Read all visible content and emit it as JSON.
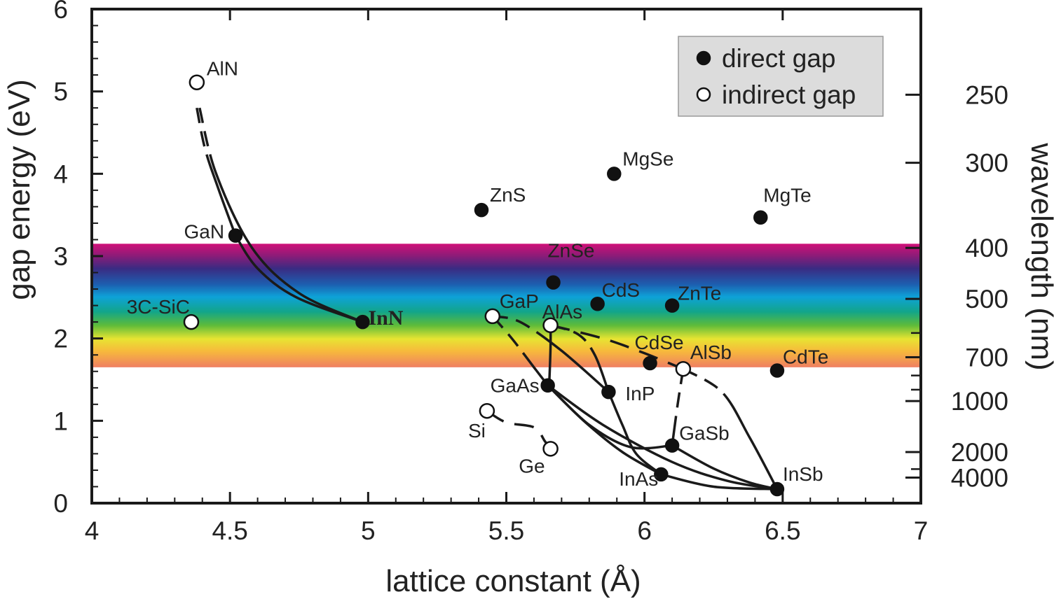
{
  "chart_data": {
    "type": "scatter",
    "xlabel": "lattice constant (Å)",
    "ylabel": "gap energy (eV)",
    "y2label": "wavelength (nm)",
    "xlim": [
      4,
      7
    ],
    "ylim": [
      0,
      6
    ],
    "x_ticks": [
      "4",
      "4.5",
      "5",
      "5.5",
      "6",
      "6.5",
      "7"
    ],
    "y_ticks": [
      "0",
      "1",
      "2",
      "3",
      "4",
      "5",
      "6"
    ],
    "wavelength_ticks": [
      {
        "label": "250",
        "nm": 250
      },
      {
        "label": "300",
        "nm": 300
      },
      {
        "label": "400",
        "nm": 400
      },
      {
        "label": "500",
        "nm": 500
      },
      {
        "label": "700",
        "nm": 700
      },
      {
        "label": "1000",
        "nm": 1000
      },
      {
        "label": "2000",
        "nm": 2000
      },
      {
        "label": "4000",
        "nm": 4000
      }
    ],
    "wavelength_extra_ticks_nm": [
      600,
      800,
      900,
      3000
    ],
    "visible_band_eV": [
      1.65,
      3.15
    ],
    "legend": {
      "position": "top-right",
      "entries": [
        {
          "label": "direct gap",
          "marker": "filled"
        },
        {
          "label": "indirect gap",
          "marker": "open"
        }
      ]
    },
    "materials": [
      {
        "name": "AlN",
        "a": 4.38,
        "eg": 5.11,
        "gap": "indirect"
      },
      {
        "name": "GaN",
        "a": 4.52,
        "eg": 3.25,
        "gap": "direct"
      },
      {
        "name": "InN",
        "a": 4.98,
        "eg": 2.2,
        "gap": "direct",
        "bold": true
      },
      {
        "name": "3C-SiC",
        "a": 4.36,
        "eg": 2.2,
        "gap": "indirect"
      },
      {
        "name": "ZnS",
        "a": 5.41,
        "eg": 3.56,
        "gap": "direct"
      },
      {
        "name": "MgSe",
        "a": 5.89,
        "eg": 4.0,
        "gap": "direct"
      },
      {
        "name": "MgTe",
        "a": 6.42,
        "eg": 3.47,
        "gap": "direct"
      },
      {
        "name": "ZnSe",
        "a": 5.67,
        "eg": 2.68,
        "gap": "direct"
      },
      {
        "name": "CdS",
        "a": 5.83,
        "eg": 2.42,
        "gap": "direct"
      },
      {
        "name": "ZnTe",
        "a": 6.1,
        "eg": 2.4,
        "gap": "direct"
      },
      {
        "name": "GaP",
        "a": 5.45,
        "eg": 2.27,
        "gap": "indirect"
      },
      {
        "name": "AlAs",
        "a": 5.66,
        "eg": 2.16,
        "gap": "indirect"
      },
      {
        "name": "CdSe",
        "a": 6.02,
        "eg": 1.7,
        "gap": "direct"
      },
      {
        "name": "AlSb",
        "a": 6.14,
        "eg": 1.63,
        "gap": "indirect"
      },
      {
        "name": "CdTe",
        "a": 6.48,
        "eg": 1.61,
        "gap": "direct"
      },
      {
        "name": "GaAs",
        "a": 5.65,
        "eg": 1.43,
        "gap": "direct"
      },
      {
        "name": "InP",
        "a": 5.87,
        "eg": 1.35,
        "gap": "direct"
      },
      {
        "name": "Si",
        "a": 5.43,
        "eg": 1.12,
        "gap": "indirect"
      },
      {
        "name": "Ge",
        "a": 5.66,
        "eg": 0.66,
        "gap": "indirect"
      },
      {
        "name": "GaSb",
        "a": 6.1,
        "eg": 0.7,
        "gap": "direct"
      },
      {
        "name": "InAs",
        "a": 6.06,
        "eg": 0.35,
        "gap": "direct"
      },
      {
        "name": "InSb",
        "a": 6.48,
        "eg": 0.17,
        "gap": "direct"
      }
    ],
    "alloy_curves": [
      {
        "name": "AlN-GaN",
        "points": [
          [
            4.38,
            4.8
          ],
          [
            4.41,
            4.3
          ],
          [
            4.46,
            3.8
          ],
          [
            4.52,
            3.25
          ]
        ],
        "dash": "top"
      },
      {
        "name": "GaN-InN",
        "points": [
          [
            4.52,
            3.25
          ],
          [
            4.6,
            2.85
          ],
          [
            4.74,
            2.5
          ],
          [
            4.98,
            2.2
          ]
        ]
      },
      {
        "name": "AlN-InN",
        "points": [
          [
            4.39,
            4.8
          ],
          [
            4.45,
            4.0
          ],
          [
            4.58,
            3.1
          ],
          [
            4.75,
            2.55
          ],
          [
            4.98,
            2.2
          ]
        ],
        "dash": "top"
      },
      {
        "name": "GaP-GaAs",
        "points": [
          [
            5.45,
            2.27
          ],
          [
            5.52,
            2.0
          ],
          [
            5.6,
            1.65
          ],
          [
            5.65,
            1.43
          ]
        ],
        "dash": "top"
      },
      {
        "name": "AlAs-GaAs",
        "points": [
          [
            5.66,
            2.16
          ],
          [
            5.66,
            1.9
          ],
          [
            5.655,
            1.43
          ]
        ]
      },
      {
        "name": "GaP-InP",
        "points": [
          [
            5.45,
            2.27
          ],
          [
            5.55,
            2.2
          ],
          [
            5.7,
            1.85
          ],
          [
            5.87,
            1.35
          ]
        ],
        "dash": "top"
      },
      {
        "name": "AlAs-InP",
        "points": [
          [
            5.66,
            2.16
          ],
          [
            5.76,
            2.05
          ],
          [
            5.82,
            1.8
          ],
          [
            5.87,
            1.35
          ]
        ],
        "dash": "top"
      },
      {
        "name": "GaAs-InAs",
        "points": [
          [
            5.65,
            1.43
          ],
          [
            5.78,
            1.0
          ],
          [
            5.92,
            0.62
          ],
          [
            6.06,
            0.35
          ]
        ]
      },
      {
        "name": "InP-InAs",
        "points": [
          [
            5.87,
            1.35
          ],
          [
            5.92,
            0.95
          ],
          [
            5.97,
            0.6
          ],
          [
            6.06,
            0.35
          ]
        ]
      },
      {
        "name": "AlAs-AlSb",
        "points": [
          [
            5.66,
            2.16
          ],
          [
            5.85,
            2.0
          ],
          [
            6.0,
            1.82
          ],
          [
            6.14,
            1.63
          ]
        ],
        "dash": "all"
      },
      {
        "name": "GaAs-GaSb-path",
        "points": [
          [
            5.65,
            1.43
          ],
          [
            5.8,
            0.95
          ],
          [
            5.95,
            0.68
          ],
          [
            6.1,
            0.7
          ]
        ]
      },
      {
        "name": "AlSb-GaSb",
        "points": [
          [
            6.14,
            1.63
          ],
          [
            6.12,
            1.2
          ],
          [
            6.1,
            0.7
          ]
        ],
        "dash": "top"
      },
      {
        "name": "GaAs-InSb",
        "points": [
          [
            5.65,
            1.43
          ],
          [
            5.85,
            0.95
          ],
          [
            6.1,
            0.5
          ],
          [
            6.3,
            0.27
          ],
          [
            6.48,
            0.17
          ]
        ]
      },
      {
        "name": "InAs-InSb",
        "points": [
          [
            6.06,
            0.35
          ],
          [
            6.25,
            0.2
          ],
          [
            6.48,
            0.17
          ]
        ]
      },
      {
        "name": "GaSb-InSb",
        "points": [
          [
            6.1,
            0.7
          ],
          [
            6.25,
            0.42
          ],
          [
            6.38,
            0.25
          ],
          [
            6.48,
            0.17
          ]
        ]
      },
      {
        "name": "AlSb-InSb",
        "points": [
          [
            6.14,
            1.63
          ],
          [
            6.28,
            1.35
          ],
          [
            6.38,
            0.8
          ],
          [
            6.48,
            0.17
          ]
        ],
        "dash": "top"
      },
      {
        "name": "Si-Ge",
        "points": [
          [
            5.43,
            1.12
          ],
          [
            5.5,
            0.98
          ],
          [
            5.6,
            0.92
          ],
          [
            5.64,
            0.75
          ],
          [
            5.66,
            0.66
          ]
        ],
        "dash": "all"
      }
    ]
  }
}
